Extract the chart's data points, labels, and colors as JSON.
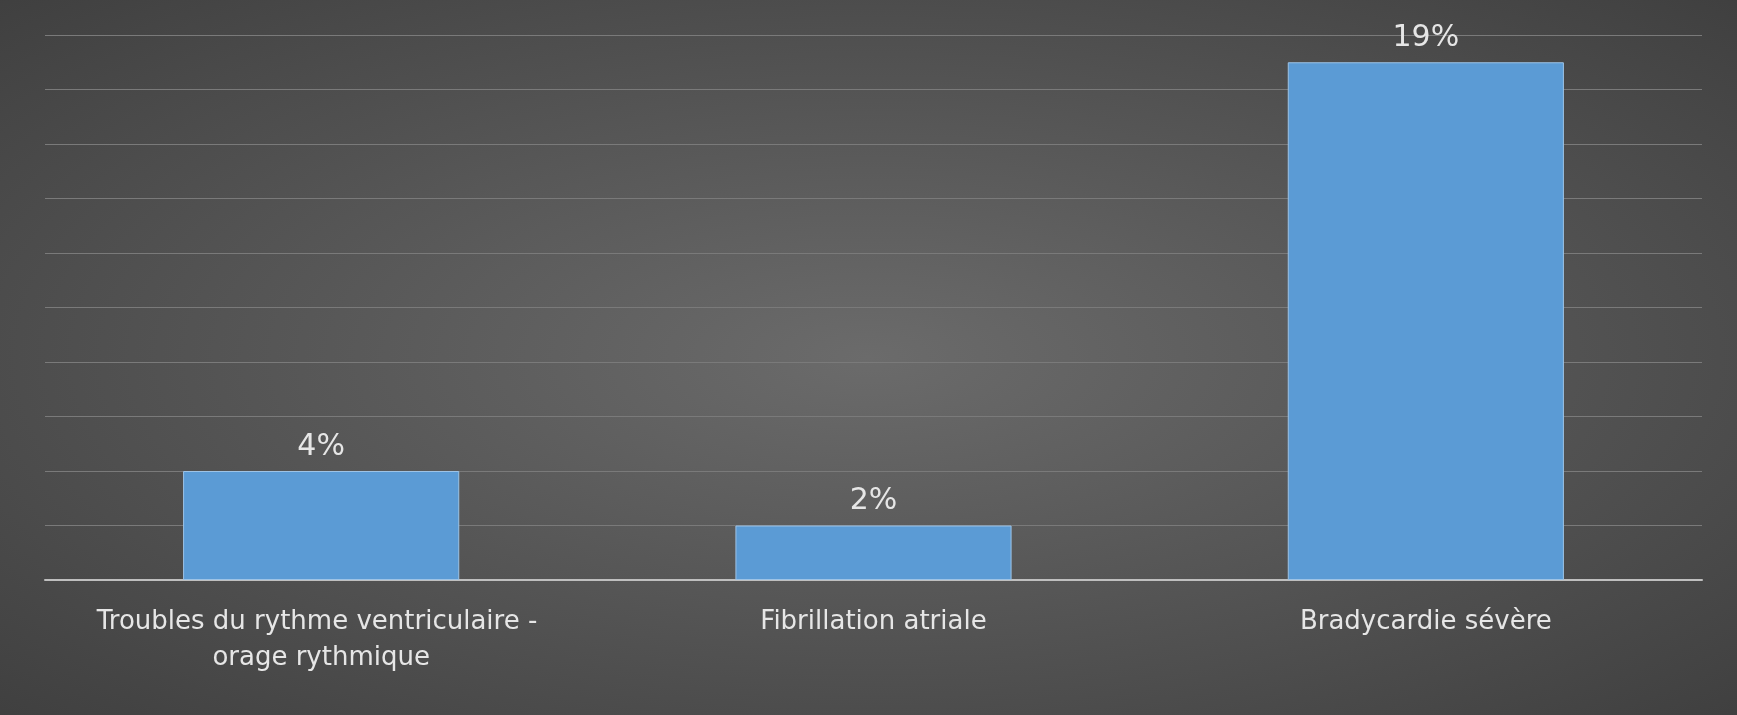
{
  "chart_data": {
    "type": "bar",
    "categories": [
      "Troubles du rythme ventriculaire - orage rythmique",
      "Fibrillation atriale",
      "Bradycardie sévère"
    ],
    "values": [
      4,
      2,
      19
    ],
    "color": "#5b9bd5",
    "value_labels": [
      "4%",
      "2%",
      "19%"
    ],
    "ylim": [
      0,
      20
    ],
    "yticks": [
      {
        "value": 0,
        "label": null
      },
      {
        "value": 2,
        "label": null
      },
      {
        "value": 4,
        "label": null
      },
      {
        "value": 6,
        "label": null
      },
      {
        "value": 8,
        "label": null
      },
      {
        "value": 10,
        "label": null
      },
      {
        "value": 12,
        "label": null
      },
      {
        "value": 14,
        "label": null
      },
      {
        "value": 16,
        "label": null
      },
      {
        "value": 18,
        "label": null
      },
      {
        "value": 20,
        "label": null
      }
    ],
    "grid": "y",
    "tick_labels": "x"
  }
}
